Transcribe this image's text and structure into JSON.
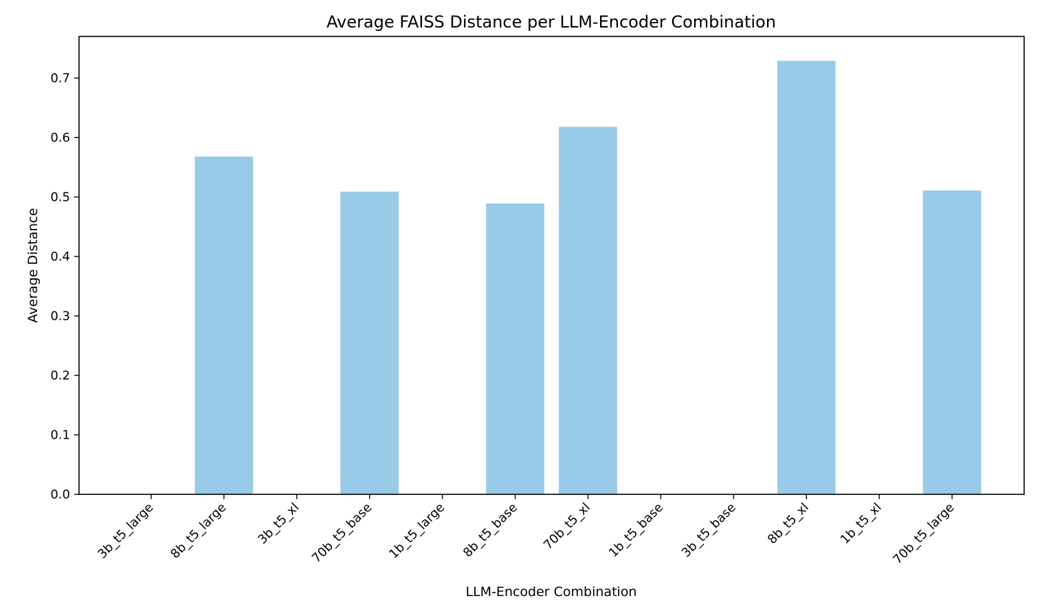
{
  "chart_data": {
    "type": "bar",
    "title": "Average FAISS Distance per LLM-Encoder Combination",
    "xlabel": "LLM-Encoder Combination",
    "ylabel": "Average Distance",
    "categories": [
      "3b_t5_large",
      "8b_t5_large",
      "3b_t5_xl",
      "70b_t5_base",
      "1b_t5_large",
      "8b_t5_base",
      "70b_t5_xl",
      "1b_t5_base",
      "3b_t5_base",
      "8b_t5_xl",
      "1b_t5_xl",
      "70b_t5_large"
    ],
    "values": [
      0.0,
      0.568,
      0.0,
      0.509,
      0.0,
      0.489,
      0.618,
      0.0,
      0.0,
      0.729,
      0.0,
      0.511
    ],
    "ylim": [
      0,
      0.77
    ],
    "yticks": [
      "0.0",
      "0.1",
      "0.2",
      "0.3",
      "0.4",
      "0.5",
      "0.6",
      "0.7"
    ],
    "grid": false,
    "legend": "none",
    "bar_color": "#97cbe7"
  }
}
